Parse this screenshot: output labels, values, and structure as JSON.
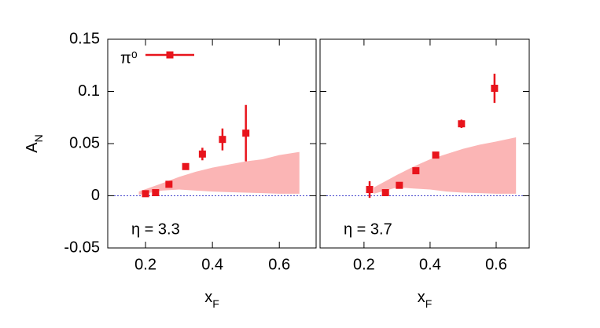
{
  "chart_data": [
    {
      "type": "scatter",
      "y_label": {
        "text": "A",
        "sub": "N"
      },
      "x_label": {
        "text": "x",
        "sub": "F"
      },
      "annotation": "η = 3.3",
      "xlim": [
        0.087,
        0.71
      ],
      "ylim": [
        -0.05,
        0.15
      ],
      "xticks": [
        0.2,
        0.4,
        0.6
      ],
      "yticks": [
        -0.05,
        0,
        0.05,
        0.1,
        0.15
      ],
      "ytick_labels": true,
      "legend": "upper left",
      "series": [
        {
          "name": "π⁰",
          "color": "#e8141c",
          "x": [
            0.2,
            0.23,
            0.27,
            0.32,
            0.37,
            0.43,
            0.5
          ],
          "values": [
            0.002,
            0.003,
            0.011,
            0.028,
            0.04,
            0.054,
            0.06
          ],
          "errors": [
            0.002,
            0.002,
            0.002,
            0.002,
            0.006,
            0.0105,
            0.027
          ]
        }
      ],
      "band": {
        "color": "#fbb5b5",
        "x": [
          0.18,
          0.25,
          0.3,
          0.35,
          0.4,
          0.45,
          0.5,
          0.55,
          0.6,
          0.66
        ],
        "upper": [
          0.004,
          0.012,
          0.018,
          0.023,
          0.027,
          0.03,
          0.033,
          0.035,
          0.039,
          0.042
        ],
        "lower": [
          0.001,
          0.005,
          0.006,
          0.005,
          0.004,
          0.0035,
          0.003,
          0.0025,
          0.002,
          0.002
        ]
      }
    },
    {
      "type": "scatter",
      "x_label": {
        "text": "x",
        "sub": "F"
      },
      "annotation": "η = 3.7",
      "xlim": [
        0.067,
        0.7
      ],
      "ylim": [
        -0.05,
        0.15
      ],
      "xticks": [
        0.2,
        0.4,
        0.6
      ],
      "yticks": [
        -0.05,
        0,
        0.05,
        0.1,
        0.15
      ],
      "ytick_labels": false,
      "series": [
        {
          "color": "#e8141c",
          "x": [
            0.217,
            0.265,
            0.307,
            0.357,
            0.417,
            0.495,
            0.595
          ],
          "values": [
            0.006,
            0.003,
            0.01,
            0.024,
            0.039,
            0.069,
            0.103
          ],
          "errors": [
            0.008,
            0.002,
            0.002,
            0.002,
            0.002,
            0.004,
            0.014
          ]
        }
      ],
      "band": {
        "color": "#fbb5b5",
        "x": [
          0.23,
          0.3,
          0.35,
          0.4,
          0.45,
          0.5,
          0.55,
          0.6,
          0.66
        ],
        "upper": [
          0.008,
          0.02,
          0.028,
          0.035,
          0.04,
          0.045,
          0.049,
          0.052,
          0.056
        ],
        "lower": [
          0.002,
          0.008,
          0.007,
          0.006,
          0.004,
          0.003,
          0.0025,
          0.002,
          0.002
        ]
      }
    }
  ]
}
